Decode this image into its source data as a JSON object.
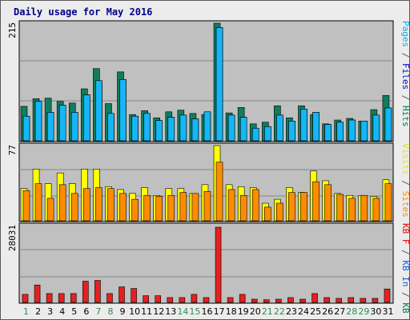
{
  "chart_data": {
    "type": "bar",
    "title": "Daily usage for May 2016",
    "categories": [
      "1",
      "2",
      "3",
      "4",
      "5",
      "6",
      "7",
      "8",
      "9",
      "10",
      "11",
      "12",
      "13",
      "14",
      "15",
      "16",
      "17",
      "18",
      "19",
      "20",
      "21",
      "22",
      "23",
      "24",
      "25",
      "26",
      "27",
      "28",
      "29",
      "30",
      "31"
    ],
    "weekend_days": [
      "1",
      "7",
      "8",
      "14",
      "15",
      "21",
      "22",
      "28",
      "29"
    ],
    "panels": [
      {
        "name": "top",
        "max_label": "215",
        "ymax": 215,
        "legend": [
          {
            "text": "Pages",
            "color": "#00b2ff"
          },
          {
            "text": " / ",
            "color": "#555555"
          },
          {
            "text": "Files",
            "color": "#0000cc"
          },
          {
            "text": " / ",
            "color": "#555555"
          },
          {
            "text": "Hits",
            "color": "#007a55"
          }
        ],
        "series": [
          {
            "name": "Hits",
            "color": "#0f7d5e",
            "values": [
              63,
              77,
              78,
              72,
              69,
              95,
              132,
              68,
              126,
              48,
              55,
              42,
              53,
              56,
              50,
              48,
              215,
              51,
              61,
              31,
              34,
              64,
              42,
              64,
              48,
              31,
              38,
              41,
              36,
              57,
              83
            ]
          },
          {
            "name": "Files",
            "color": "#0a3fd8",
            "values": [
              45,
              72,
              52,
              65,
              52,
              84,
              110,
              50,
              112,
              45,
              50,
              37,
              43,
              47,
              40,
              53,
              207,
              47,
              43,
              23,
              26,
              47,
              36,
              58,
              52,
              30,
              34,
              38,
              36,
              47,
              60
            ]
          },
          {
            "name": "Pages",
            "color": "#15b6f5",
            "values": [
              45,
              72,
              52,
              65,
              52,
              84,
              110,
              50,
              112,
              45,
              50,
              37,
              43,
              47,
              40,
              53,
              207,
              47,
              43,
              23,
              26,
              47,
              36,
              58,
              52,
              30,
              34,
              38,
              36,
              47,
              60
            ]
          }
        ]
      },
      {
        "name": "middle",
        "max_label": "77",
        "ymax": 77,
        "legend": [
          {
            "text": "Visits",
            "color": "#e6e600"
          },
          {
            "text": " / ",
            "color": "#555555"
          },
          {
            "text": "Sites",
            "color": "#ff8800"
          }
        ],
        "series": [
          {
            "name": "Visits",
            "color": "#ffff00",
            "values": [
              33,
              53,
              38,
              49,
              38,
              53,
              53,
              35,
              32,
              28,
              34,
              26,
              33,
              33,
              28,
              37,
              77,
              37,
              35,
              34,
              18,
              22,
              34,
              29,
              51,
              41,
              28,
              26,
              26,
              25,
              42
            ]
          },
          {
            "name": "Sites",
            "color": "#ff8c00",
            "values": [
              31,
              38,
              23,
              37,
              28,
              33,
              34,
              33,
              28,
              22,
              26,
              25,
              26,
              29,
              28,
              30,
              60,
              32,
              26,
              32,
              14,
              18,
              29,
              29,
              40,
              37,
              27,
              23,
              26,
              23,
              38
            ]
          }
        ]
      },
      {
        "name": "bottom",
        "max_label": "28031",
        "ymax": 28031,
        "legend": [
          {
            "text": "KB F",
            "color": "#e60000"
          },
          {
            "text": " / ",
            "color": "#555555"
          },
          {
            "text": "KB In",
            "color": "#1a5ed8"
          },
          {
            "text": " / ",
            "color": "#555555"
          },
          {
            "text": "KB Out",
            "color": "#007a55"
          }
        ],
        "series": [
          {
            "name": "KB F",
            "color": "#e62020",
            "values": [
              3000,
              6500,
              3300,
              3300,
              3300,
              7900,
              8200,
              3300,
              5800,
              5200,
              2500,
              2500,
              1800,
              1800,
              3000,
              1800,
              28031,
              1800,
              3000,
              1200,
              1000,
              1200,
              1800,
              1200,
              3300,
              1800,
              1500,
              1800,
              1500,
              1500,
              5000
            ]
          }
        ]
      }
    ]
  }
}
